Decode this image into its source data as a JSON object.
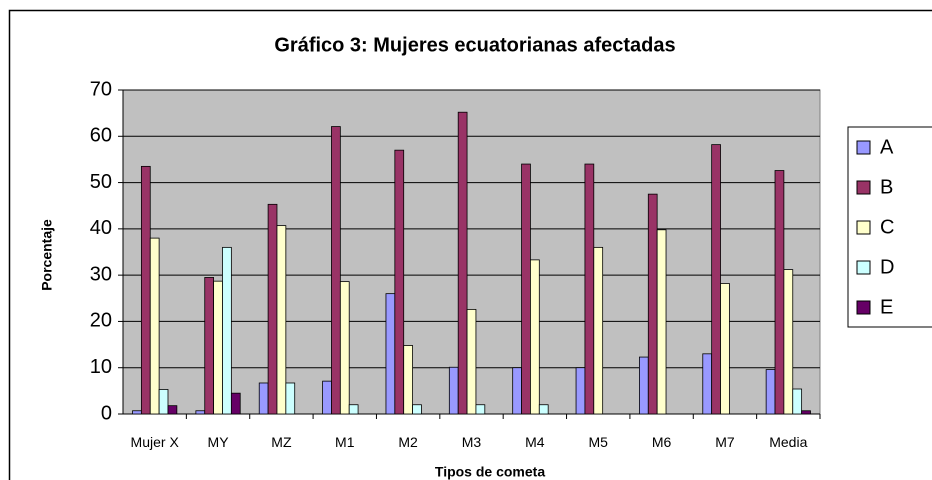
{
  "chart_data": {
    "type": "bar",
    "title": "Gráfico 3: Mujeres ecuatorianas afectadas",
    "x_label": "Tipos de cometa",
    "y_label": "Porcentaje",
    "categories": [
      "Mujer X",
      "MY",
      "MZ",
      "M1",
      "M2",
      "M3",
      "M4",
      "M5",
      "M6",
      "M7",
      "Media"
    ],
    "series": [
      {
        "name": "A",
        "color": "#9999ff",
        "values": [
          0.7,
          0.7,
          6.7,
          7.1,
          26,
          10.1,
          10,
          10,
          12.3,
          13,
          9.6
        ]
      },
      {
        "name": "B",
        "color": "#993366",
        "values": [
          53.5,
          29.5,
          45.3,
          62.1,
          57,
          65.2,
          54,
          54,
          47.5,
          58.2,
          52.6
        ]
      },
      {
        "name": "C",
        "color": "#ffffcc",
        "values": [
          38,
          28.7,
          40.7,
          28.6,
          14.8,
          22.6,
          33.3,
          36,
          39.8,
          28.2,
          31.2
        ]
      },
      {
        "name": "D",
        "color": "#ccffff",
        "values": [
          5.3,
          36,
          6.7,
          2,
          2,
          2,
          2,
          0,
          0,
          0,
          5.4
        ]
      },
      {
        "name": "E",
        "color": "#660066",
        "values": [
          1.8,
          4.5,
          0,
          0,
          0,
          0,
          0,
          0,
          0,
          0,
          0.7
        ]
      }
    ],
    "ylim": [
      0,
      70
    ],
    "yticks": [
      0,
      10,
      20,
      30,
      40,
      50,
      60,
      70
    ],
    "grid": true,
    "legend": "right",
    "plot_background": "#c0c0c0"
  }
}
